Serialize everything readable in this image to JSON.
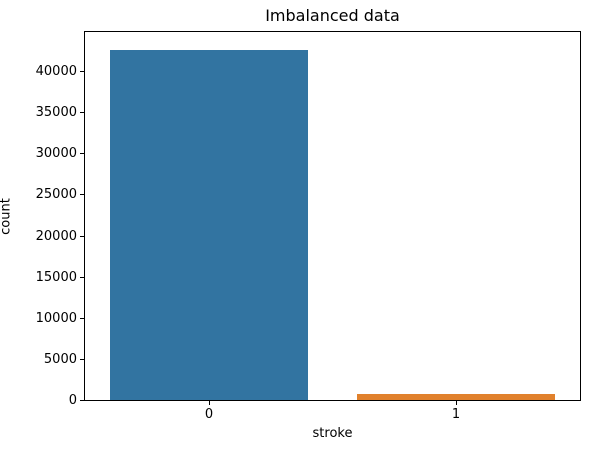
{
  "chart_data": {
    "type": "bar",
    "title": "Imbalanced data",
    "xlabel": "stroke",
    "ylabel": "count",
    "categories": [
      "0",
      "1"
    ],
    "values": [
      42617,
      783
    ],
    "bar_colors": [
      "#3274a1",
      "#e1812c"
    ],
    "bar_width_fraction": 0.8,
    "ylim": [
      0,
      44748
    ],
    "yticks": [
      0,
      5000,
      10000,
      15000,
      20000,
      25000,
      30000,
      35000,
      40000
    ],
    "grid": false,
    "legend": null,
    "spine_color": "#000000",
    "background_color": "#ffffff"
  }
}
